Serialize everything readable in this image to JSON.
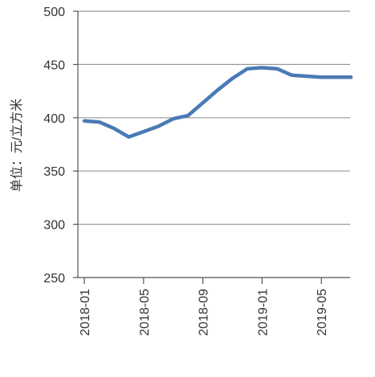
{
  "chart_data": {
    "type": "line",
    "title": "",
    "xlabel": "",
    "ylabel": "单位：元/立方米",
    "ylim": [
      250,
      500
    ],
    "yticks": [
      250,
      300,
      350,
      400,
      450,
      500
    ],
    "grid": "horizontal",
    "x_tick_labels": [
      "2018-01",
      "2018-05",
      "2018-09",
      "2019-01",
      "2019-05"
    ],
    "series": [
      {
        "color": "#4a7ab5",
        "x": [
          "2018-01",
          "2018-02",
          "2018-03",
          "2018-04",
          "2018-05",
          "2018-06",
          "2018-07",
          "2018-08",
          "2018-09",
          "2018-10",
          "2018-11",
          "2018-12",
          "2019-01",
          "2019-02",
          "2019-03",
          "2019-04",
          "2019-05",
          "2019-06",
          "2019-07"
        ],
        "values": [
          397,
          396,
          390,
          382,
          387,
          392,
          399,
          402,
          414,
          426,
          437,
          446,
          447,
          446,
          440,
          439,
          438,
          438,
          438
        ]
      }
    ]
  },
  "colors": {
    "line": "#4a7ab5",
    "grid": "#999999",
    "axis": "#555555"
  }
}
